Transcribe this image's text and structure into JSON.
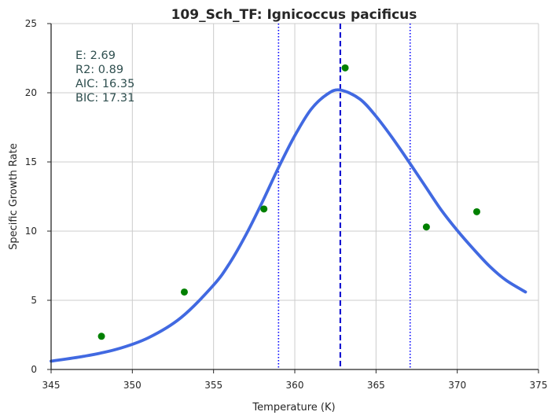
{
  "chart_data": {
    "type": "scatter",
    "title": "109_Sch_TF: Ignicoccus pacificus",
    "xlabel": "Temperature (K)",
    "ylabel": "Specific Growth Rate",
    "xlim": [
      345,
      375
    ],
    "ylim": [
      0,
      25
    ],
    "xticks": [
      345,
      350,
      355,
      360,
      365,
      370,
      375
    ],
    "yticks": [
      0,
      5,
      10,
      15,
      20,
      25
    ],
    "grid": true,
    "points": {
      "color": "#008000",
      "x": [
        348.1,
        353.2,
        358.1,
        363.1,
        368.1,
        371.2
      ],
      "y": [
        2.4,
        5.6,
        11.6,
        21.8,
        10.3,
        11.4
      ]
    },
    "fit_curve": {
      "color": "#4169e1",
      "x": [
        345.0,
        347.0,
        349.0,
        351.0,
        353.0,
        355.0,
        356.0,
        357.0,
        358.0,
        359.0,
        360.0,
        361.0,
        362.0,
        362.8,
        364.0,
        365.0,
        366.0,
        367.0,
        368.0,
        369.0,
        370.0,
        371.0,
        372.0,
        373.0,
        374.2
      ],
      "y": [
        0.6,
        0.95,
        1.45,
        2.3,
        3.75,
        6.1,
        7.7,
        9.75,
        12.1,
        14.6,
        16.9,
        18.8,
        19.9,
        20.2,
        19.55,
        18.3,
        16.75,
        15.05,
        13.3,
        11.55,
        10.05,
        8.7,
        7.45,
        6.45,
        5.6
      ]
    },
    "vertical_lines": [
      {
        "x": 362.8,
        "style": "dashed",
        "color": "#0000cd"
      },
      {
        "x": 359.0,
        "style": "dotted",
        "color": "#0000ff"
      },
      {
        "x": 367.1,
        "style": "dotted",
        "color": "#0000ff"
      }
    ],
    "annotation": [
      "E:  2.69",
      "R2:  0.89",
      "AIC: 16.35",
      "BIC: 17.31"
    ]
  }
}
